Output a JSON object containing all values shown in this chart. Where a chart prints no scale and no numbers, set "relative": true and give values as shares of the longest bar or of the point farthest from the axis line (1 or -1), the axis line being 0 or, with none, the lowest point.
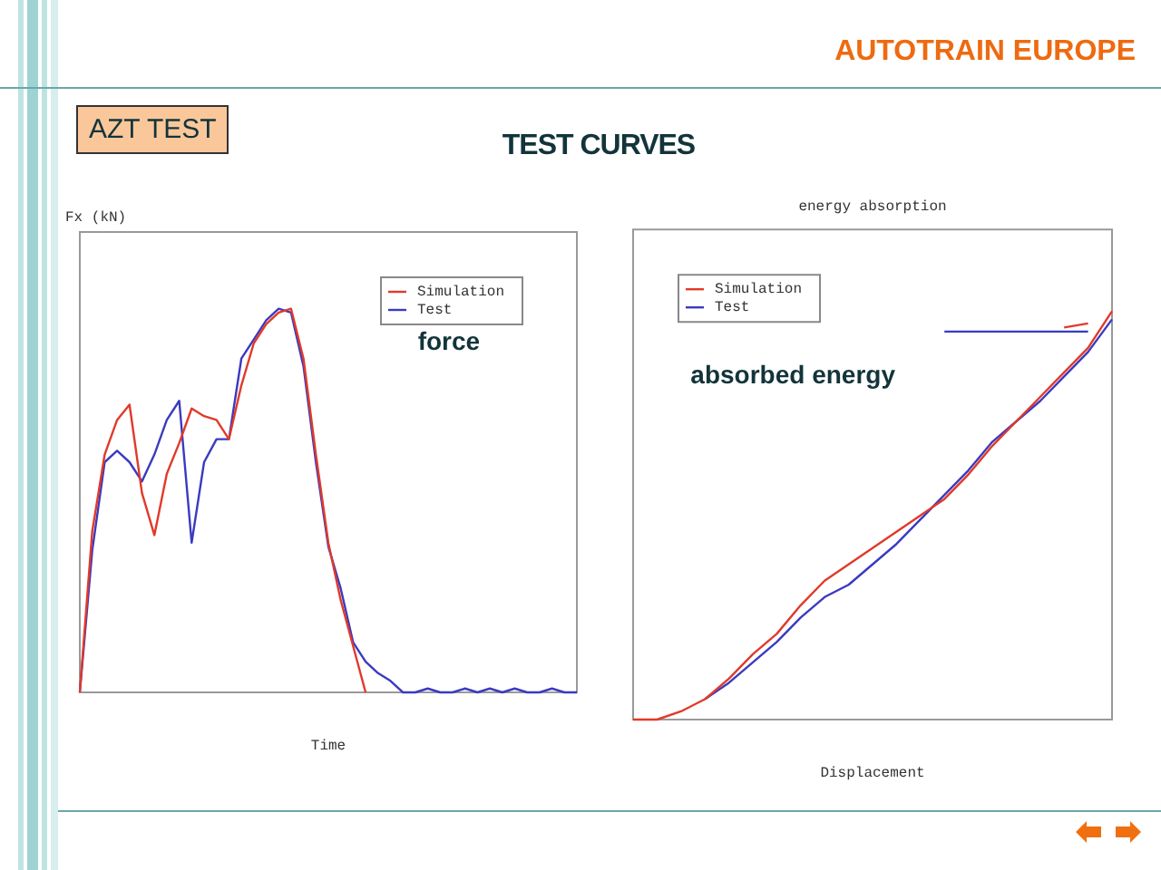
{
  "chart_data": [
    {
      "type": "other",
      "title": "TEST CURVES",
      "annotations": [
        "AUTOTRAIN EUROPE",
        "AZT TEST"
      ]
    },
    {
      "type": "line",
      "ylabel": "Fx (kN)",
      "xlabel": "Time",
      "relative": true,
      "legend": "top right",
      "annotations": [
        "force"
      ],
      "categories": [
        null,
        null,
        null,
        null,
        null,
        null,
        null,
        null,
        null,
        null,
        null,
        null,
        null,
        null,
        null,
        null,
        null,
        null,
        null,
        null,
        null,
        null,
        null,
        null,
        null,
        null,
        null,
        null,
        null,
        null,
        null,
        null,
        null,
        null,
        null,
        null,
        null,
        null,
        null,
        null,
        null
      ],
      "series": [
        {
          "name": "Simulation",
          "color": "#e03a2a",
          "values": [
            0,
            0.42,
            0.62,
            0.71,
            0.75,
            0.52,
            0.41,
            0.57,
            0.65,
            0.74,
            0.72,
            0.71,
            0.66,
            0.8,
            0.91,
            0.96,
            0.99,
            1.0,
            0.87,
            0.62,
            0.39,
            0.24,
            0.12,
            0,
            null,
            null,
            null,
            null,
            null,
            null,
            null,
            null,
            null,
            null,
            null,
            null,
            null,
            null,
            null,
            null,
            null
          ]
        },
        {
          "name": "Test",
          "color": "#3a3ac0",
          "values": [
            0,
            0.37,
            0.6,
            0.63,
            0.6,
            0.55,
            0.62,
            0.71,
            0.76,
            0.39,
            0.6,
            0.66,
            0.66,
            0.87,
            0.92,
            0.97,
            1.0,
            0.99,
            0.85,
            0.6,
            0.38,
            0.27,
            0.13,
            0.08,
            0.05,
            0.03,
            0,
            0,
            0.01,
            0,
            0,
            0.01,
            0,
            0.01,
            0,
            0.01,
            0,
            0,
            0.01,
            0,
            0
          ]
        }
      ]
    },
    {
      "type": "line",
      "title": "energy absorption",
      "xlabel": "Displacement",
      "relative": true,
      "legend": "top left",
      "annotations": [
        "absorbed energy"
      ],
      "categories": [
        null,
        null,
        null,
        null,
        null,
        null,
        null,
        null,
        null,
        null,
        null,
        null,
        null,
        null,
        null,
        null,
        null,
        null,
        null,
        null,
        null
      ],
      "series": [
        {
          "name": "Simulation",
          "color": "#e03a2a",
          "values": [
            0,
            0,
            0.02,
            0.05,
            0.1,
            0.16,
            0.21,
            0.28,
            0.34,
            0.38,
            0.42,
            0.46,
            0.5,
            0.54,
            0.6,
            0.67,
            0.73,
            0.79,
            0.85,
            0.91,
            1.0
          ]
        },
        {
          "name": "Test",
          "color": "#3a3ac0",
          "values": [
            null,
            null,
            null,
            0.05,
            0.09,
            0.14,
            0.19,
            0.25,
            0.3,
            0.33,
            0.38,
            0.43,
            0.49,
            0.55,
            0.61,
            0.68,
            0.73,
            0.78,
            0.84,
            0.9,
            0.98
          ]
        },
        {
          "color": "#e03a2a",
          "values": [
            null,
            null,
            null,
            null,
            null,
            null,
            null,
            null,
            null,
            null,
            null,
            null,
            null,
            null,
            null,
            null,
            null,
            null,
            0.96,
            0.97,
            null
          ]
        },
        {
          "color": "#3a3ac0",
          "values": [
            null,
            null,
            null,
            null,
            null,
            null,
            null,
            null,
            null,
            null,
            null,
            null,
            null,
            0.95,
            0.95,
            0.95,
            0.95,
            0.95,
            0.95,
            0.95,
            null
          ]
        }
      ]
    }
  ]
}
